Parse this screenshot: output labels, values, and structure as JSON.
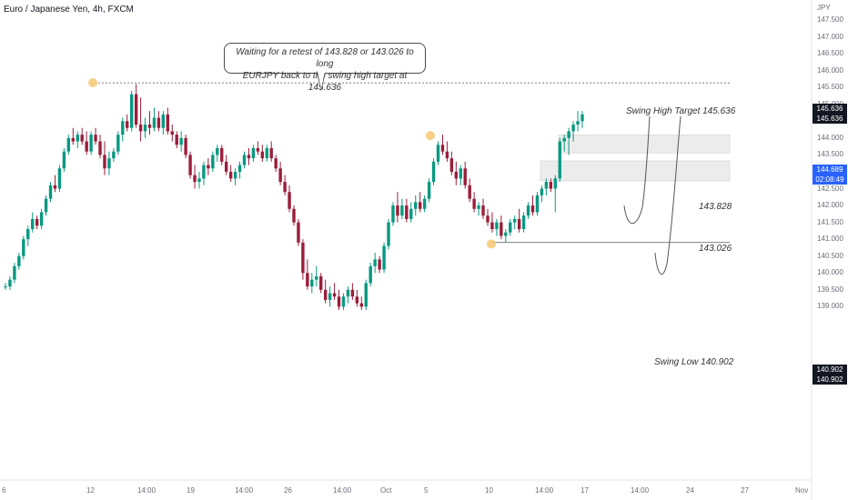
{
  "symbol": {
    "title": "Euro / Japanese Yen, 4h, FXCM"
  },
  "annotation": {
    "line1": "Waiting for a retest of 143.828 or 143.026 to long",
    "line2": "EURJPY back to the swing high target at 145.636"
  },
  "labels": {
    "swing_high": "Swing High Target 145.636",
    "zone_upper": "143.828",
    "zone_lower": "143.026",
    "swing_low": "Swing Low 140.902"
  },
  "price_axis": {
    "unit": "JPY",
    "ticks": [
      "147.500",
      "147.000",
      "146.500",
      "146.000",
      "145.500",
      "145.000",
      "144.500",
      "144.000",
      "143.500",
      "143.000",
      "142.500",
      "142.000",
      "141.500",
      "141.000",
      "140.500",
      "140.000",
      "139.500",
      "139.000"
    ],
    "tick_values": [
      147.5,
      147.0,
      146.5,
      146.0,
      145.5,
      145.0,
      144.5,
      144.0,
      143.5,
      143.0,
      142.5,
      142.0,
      141.5,
      141.0,
      140.5,
      140.0,
      139.5,
      139.0
    ],
    "tags": {
      "swing_high_a": "145.636",
      "swing_high_b": "145.636",
      "current_price": "144.689",
      "countdown": "02:08:49",
      "swing_low_a": "140.902",
      "swing_low_b": "140.902"
    }
  },
  "time_axis": {
    "labels": [
      "6",
      "12",
      "14:00",
      "19",
      "14:00",
      "26",
      "14:00",
      "Oct",
      "5",
      "10",
      "14:00",
      "17",
      "14:00",
      "24",
      "27",
      "Nov"
    ]
  },
  "levels": {
    "swing_high": 145.636,
    "zone_upper": 143.828,
    "zone_lower": 143.026,
    "swing_low": 140.902,
    "current": 144.689
  },
  "colors": {
    "up": "#089981",
    "down": "#9b1d3a",
    "current_tag": "#2962ff",
    "level_tag": "#131722",
    "zone_fill": "#ececec",
    "marker": "#f7c873"
  },
  "chart_data": {
    "type": "candlestick",
    "title": "Euro / Japanese Yen, 4h, FXCM",
    "ylabel": "JPY",
    "ylim": [
      138.8,
      147.8
    ],
    "x_ticks": [
      "6",
      "12",
      "14:00",
      "19",
      "14:00",
      "26",
      "14:00",
      "Oct",
      "5",
      "10",
      "14:00",
      "17",
      "14:00",
      "24",
      "27",
      "Nov"
    ],
    "series": [
      {
        "name": "EURJPY",
        "values": [
          [
            139.6,
            139.7,
            139.5,
            139.6
          ],
          [
            139.6,
            139.9,
            139.5,
            139.8
          ],
          [
            139.8,
            140.3,
            139.7,
            140.2
          ],
          [
            140.2,
            140.6,
            140.1,
            140.5
          ],
          [
            140.5,
            141.1,
            140.4,
            141.0
          ],
          [
            141.0,
            141.4,
            140.8,
            141.3
          ],
          [
            141.3,
            141.8,
            141.2,
            141.6
          ],
          [
            141.6,
            141.7,
            141.3,
            141.4
          ],
          [
            141.4,
            141.9,
            141.3,
            141.8
          ],
          [
            141.8,
            142.3,
            141.7,
            142.2
          ],
          [
            142.2,
            142.7,
            142.1,
            142.6
          ],
          [
            142.6,
            142.9,
            142.4,
            142.5
          ],
          [
            142.5,
            143.2,
            142.4,
            143.1
          ],
          [
            143.1,
            143.7,
            143.0,
            143.6
          ],
          [
            143.6,
            144.1,
            143.5,
            144.0
          ],
          [
            144.0,
            144.3,
            143.8,
            143.9
          ],
          [
            143.9,
            144.2,
            143.7,
            144.1
          ],
          [
            144.1,
            144.3,
            143.8,
            143.9
          ],
          [
            143.9,
            144.2,
            143.5,
            143.6
          ],
          [
            143.6,
            144.2,
            143.5,
            144.1
          ],
          [
            144.1,
            144.3,
            143.8,
            143.9
          ],
          [
            143.9,
            144.1,
            143.4,
            143.5
          ],
          [
            143.5,
            143.9,
            142.9,
            143.1
          ],
          [
            143.1,
            143.6,
            142.9,
            143.4
          ],
          [
            143.4,
            143.7,
            143.3,
            143.6
          ],
          [
            143.6,
            144.2,
            143.5,
            144.1
          ],
          [
            144.1,
            144.6,
            143.9,
            144.5
          ],
          [
            144.5,
            144.7,
            144.2,
            144.3
          ],
          [
            144.3,
            145.4,
            144.2,
            145.3
          ],
          [
            145.3,
            145.6,
            144.3,
            144.4
          ],
          [
            144.4,
            145.2,
            143.9,
            144.2
          ],
          [
            144.2,
            144.6,
            144.0,
            144.4
          ],
          [
            144.4,
            144.8,
            144.1,
            144.3
          ],
          [
            144.3,
            144.9,
            144.2,
            144.6
          ],
          [
            144.6,
            144.8,
            144.2,
            144.3
          ],
          [
            144.3,
            144.8,
            144.1,
            144.7
          ],
          [
            144.7,
            144.9,
            144.1,
            144.2
          ],
          [
            144.2,
            144.4,
            143.9,
            144.1
          ],
          [
            144.1,
            144.2,
            143.7,
            143.8
          ],
          [
            143.8,
            144.2,
            143.6,
            144.0
          ],
          [
            144.0,
            144.1,
            143.4,
            143.5
          ],
          [
            143.5,
            143.6,
            142.8,
            142.9
          ],
          [
            142.9,
            143.2,
            142.5,
            142.7
          ],
          [
            142.7,
            143.0,
            142.5,
            142.8
          ],
          [
            142.8,
            143.3,
            142.6,
            143.2
          ],
          [
            143.2,
            143.4,
            142.9,
            143.1
          ],
          [
            143.1,
            143.6,
            143.0,
            143.5
          ],
          [
            143.5,
            143.8,
            143.3,
            143.7
          ],
          [
            143.7,
            143.8,
            143.2,
            143.3
          ],
          [
            143.3,
            143.5,
            142.9,
            143.0
          ],
          [
            143.0,
            143.2,
            142.7,
            142.8
          ],
          [
            142.8,
            143.1,
            142.6,
            143.0
          ],
          [
            143.0,
            143.3,
            142.8,
            143.2
          ],
          [
            143.2,
            143.6,
            143.1,
            143.5
          ],
          [
            143.5,
            143.7,
            143.2,
            143.4
          ],
          [
            143.4,
            143.8,
            143.3,
            143.7
          ],
          [
            143.7,
            143.9,
            143.5,
            143.6
          ],
          [
            143.6,
            143.8,
            143.3,
            143.4
          ],
          [
            143.4,
            143.8,
            143.3,
            143.7
          ],
          [
            143.7,
            143.9,
            143.3,
            143.4
          ],
          [
            143.4,
            143.5,
            143.0,
            143.1
          ],
          [
            143.1,
            143.3,
            142.6,
            142.7
          ],
          [
            142.7,
            142.9,
            142.3,
            142.4
          ],
          [
            142.4,
            142.6,
            141.8,
            141.9
          ],
          [
            141.9,
            142.0,
            141.4,
            141.5
          ],
          [
            141.5,
            141.6,
            140.8,
            140.9
          ],
          [
            140.9,
            141.0,
            139.8,
            140.0
          ],
          [
            140.0,
            140.4,
            139.5,
            139.6
          ],
          [
            139.6,
            140.0,
            139.4,
            139.8
          ],
          [
            139.8,
            140.2,
            139.6,
            139.9
          ],
          [
            139.9,
            140.0,
            139.4,
            139.5
          ],
          [
            139.5,
            139.8,
            139.1,
            139.2
          ],
          [
            139.2,
            139.6,
            139.0,
            139.4
          ],
          [
            139.4,
            139.7,
            139.2,
            139.3
          ],
          [
            139.3,
            139.5,
            138.9,
            139.0
          ],
          [
            139.0,
            139.4,
            138.9,
            139.3
          ],
          [
            139.3,
            139.6,
            139.1,
            139.5
          ],
          [
            139.5,
            139.7,
            139.2,
            139.3
          ],
          [
            139.3,
            139.5,
            139.0,
            139.1
          ],
          [
            139.1,
            139.3,
            138.9,
            139.0
          ],
          [
            139.0,
            139.8,
            138.9,
            139.7
          ],
          [
            139.7,
            140.3,
            139.6,
            140.2
          ],
          [
            140.2,
            140.6,
            140.0,
            140.4
          ],
          [
            140.4,
            140.5,
            140.0,
            140.1
          ],
          [
            140.1,
            140.9,
            140.0,
            140.8
          ],
          [
            140.8,
            141.6,
            140.7,
            141.5
          ],
          [
            141.5,
            142.1,
            141.4,
            142.0
          ],
          [
            142.0,
            142.4,
            141.5,
            141.7
          ],
          [
            141.7,
            142.2,
            141.6,
            142.0
          ],
          [
            142.0,
            142.2,
            141.5,
            141.6
          ],
          [
            141.6,
            142.1,
            141.5,
            141.9
          ],
          [
            141.9,
            142.3,
            141.7,
            142.1
          ],
          [
            142.1,
            142.4,
            141.8,
            141.9
          ],
          [
            141.9,
            142.3,
            141.8,
            142.2
          ],
          [
            142.2,
            142.8,
            142.1,
            142.7
          ],
          [
            142.7,
            143.4,
            142.6,
            143.3
          ],
          [
            143.3,
            143.9,
            143.2,
            143.8
          ],
          [
            143.8,
            144.1,
            143.5,
            143.6
          ],
          [
            143.6,
            143.9,
            143.3,
            143.4
          ],
          [
            143.4,
            143.6,
            142.9,
            143.0
          ],
          [
            143.0,
            143.3,
            142.6,
            142.8
          ],
          [
            142.8,
            143.2,
            142.6,
            143.1
          ],
          [
            143.1,
            143.3,
            142.5,
            142.6
          ],
          [
            142.6,
            142.8,
            142.1,
            142.2
          ],
          [
            142.2,
            142.4,
            141.8,
            141.9
          ],
          [
            141.9,
            142.1,
            141.7,
            142.0
          ],
          [
            142.0,
            142.2,
            141.6,
            141.7
          ],
          [
            141.7,
            141.9,
            141.4,
            141.5
          ],
          [
            141.5,
            141.8,
            141.2,
            141.3
          ],
          [
            141.3,
            141.6,
            141.1,
            141.5
          ],
          [
            141.5,
            141.7,
            141.0,
            141.1
          ],
          [
            141.1,
            141.3,
            140.9,
            141.2
          ],
          [
            141.2,
            141.6,
            141.1,
            141.5
          ],
          [
            141.5,
            141.7,
            141.3,
            141.6
          ],
          [
            141.6,
            141.9,
            141.2,
            141.3
          ],
          [
            141.3,
            141.8,
            141.2,
            141.7
          ],
          [
            141.7,
            142.1,
            141.6,
            142.0
          ],
          [
            142.0,
            142.3,
            141.7,
            141.8
          ],
          [
            141.8,
            142.4,
            141.7,
            142.3
          ],
          [
            142.3,
            142.6,
            142.1,
            142.5
          ],
          [
            142.5,
            142.8,
            142.3,
            142.7
          ],
          [
            142.7,
            142.8,
            142.4,
            142.5
          ],
          [
            142.5,
            142.9,
            141.8,
            142.8
          ],
          [
            142.8,
            144.0,
            142.7,
            143.9
          ],
          [
            143.9,
            144.1,
            143.6,
            144.0
          ],
          [
            144.0,
            144.3,
            143.5,
            144.2
          ],
          [
            144.2,
            144.5,
            143.9,
            144.4
          ],
          [
            144.4,
            144.8,
            144.2,
            144.5
          ],
          [
            144.5,
            144.8,
            144.3,
            144.7
          ]
        ]
      }
    ],
    "annotations": [
      "Swing High Target 145.636",
      "143.828",
      "143.026",
      "Swing Low 140.902"
    ],
    "grid": false
  }
}
